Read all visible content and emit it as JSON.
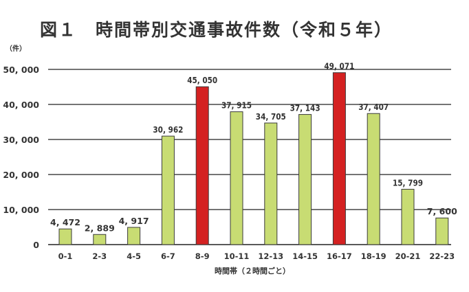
{
  "chart_data": {
    "type": "bar",
    "title": "図１　時間帯別交通事故件数（令和５年）",
    "ylabel": "（件）",
    "xlabel": "時間帯（２時間ごと）",
    "ylim": [
      0,
      50000
    ],
    "yticks": [
      0,
      10000,
      20000,
      30000,
      40000,
      50000
    ],
    "ytick_labels": [
      "0",
      "10, 000",
      "20, 000",
      "30, 000",
      "40, 000",
      "50, 000"
    ],
    "grid": true,
    "categories": [
      "0-1",
      "2-3",
      "4-5",
      "6-7",
      "8-9",
      "10-11",
      "12-13",
      "14-15",
      "16-17",
      "18-19",
      "20-21",
      "22-23"
    ],
    "values": [
      4472,
      2889,
      4917,
      30962,
      45050,
      37915,
      34705,
      37143,
      49071,
      37407,
      15799,
      7600
    ],
    "value_labels": [
      "4, 472",
      "2, 889",
      "4, 917",
      "30, 962",
      "45, 050",
      "37, 915",
      "34, 705",
      "37, 143",
      "49, 071",
      "37, 407",
      "15, 799",
      "7, 600"
    ],
    "highlight_indices": [
      4,
      8
    ],
    "colors": {
      "normal": "#c8dc73",
      "highlight": "#d42121",
      "stroke": "#3a3a3a",
      "grid": "#222222"
    }
  }
}
